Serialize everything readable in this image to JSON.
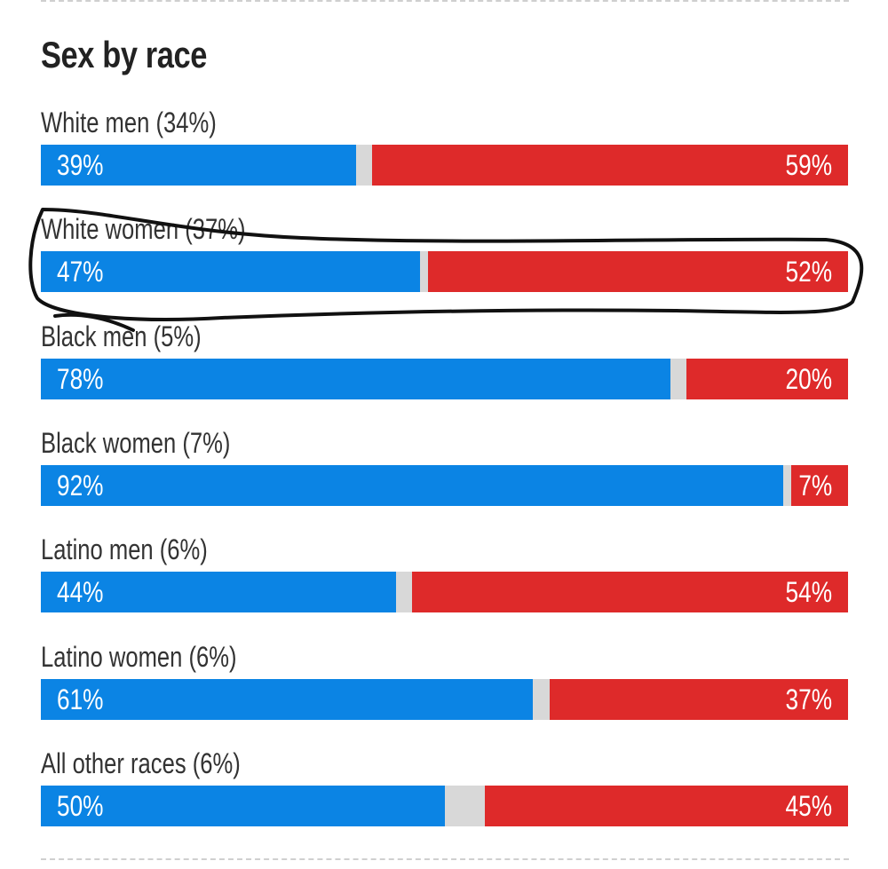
{
  "chart_data": {
    "type": "bar",
    "title": "Sex by race",
    "categories": [
      "White men (34%)",
      "White women (37%)",
      "Black men (5%)",
      "Black women (7%)",
      "Latino men (6%)",
      "Latino women (6%)",
      "All other races (6%)"
    ],
    "series": [
      {
        "values": [
          39,
          47,
          78,
          92,
          44,
          61,
          50
        ],
        "color": "#0b84e4"
      },
      {
        "values": [
          59,
          52,
          20,
          7,
          54,
          37,
          45
        ],
        "color": "#de2a2a"
      }
    ],
    "value_labels": {
      "left": [
        "39%",
        "47%",
        "78%",
        "92%",
        "44%",
        "61%",
        "50%"
      ],
      "right": [
        "59%",
        "52%",
        "20%",
        "7%",
        "54%",
        "37%",
        "45%"
      ]
    },
    "orientation": "horizontal-stacked",
    "remainder_color": "#d8d8d8",
    "xlim": [
      0,
      100
    ],
    "annotations": [
      {
        "type": "hand-drawn-circle",
        "target": "White women (37%)",
        "color": "#111111"
      }
    ]
  }
}
